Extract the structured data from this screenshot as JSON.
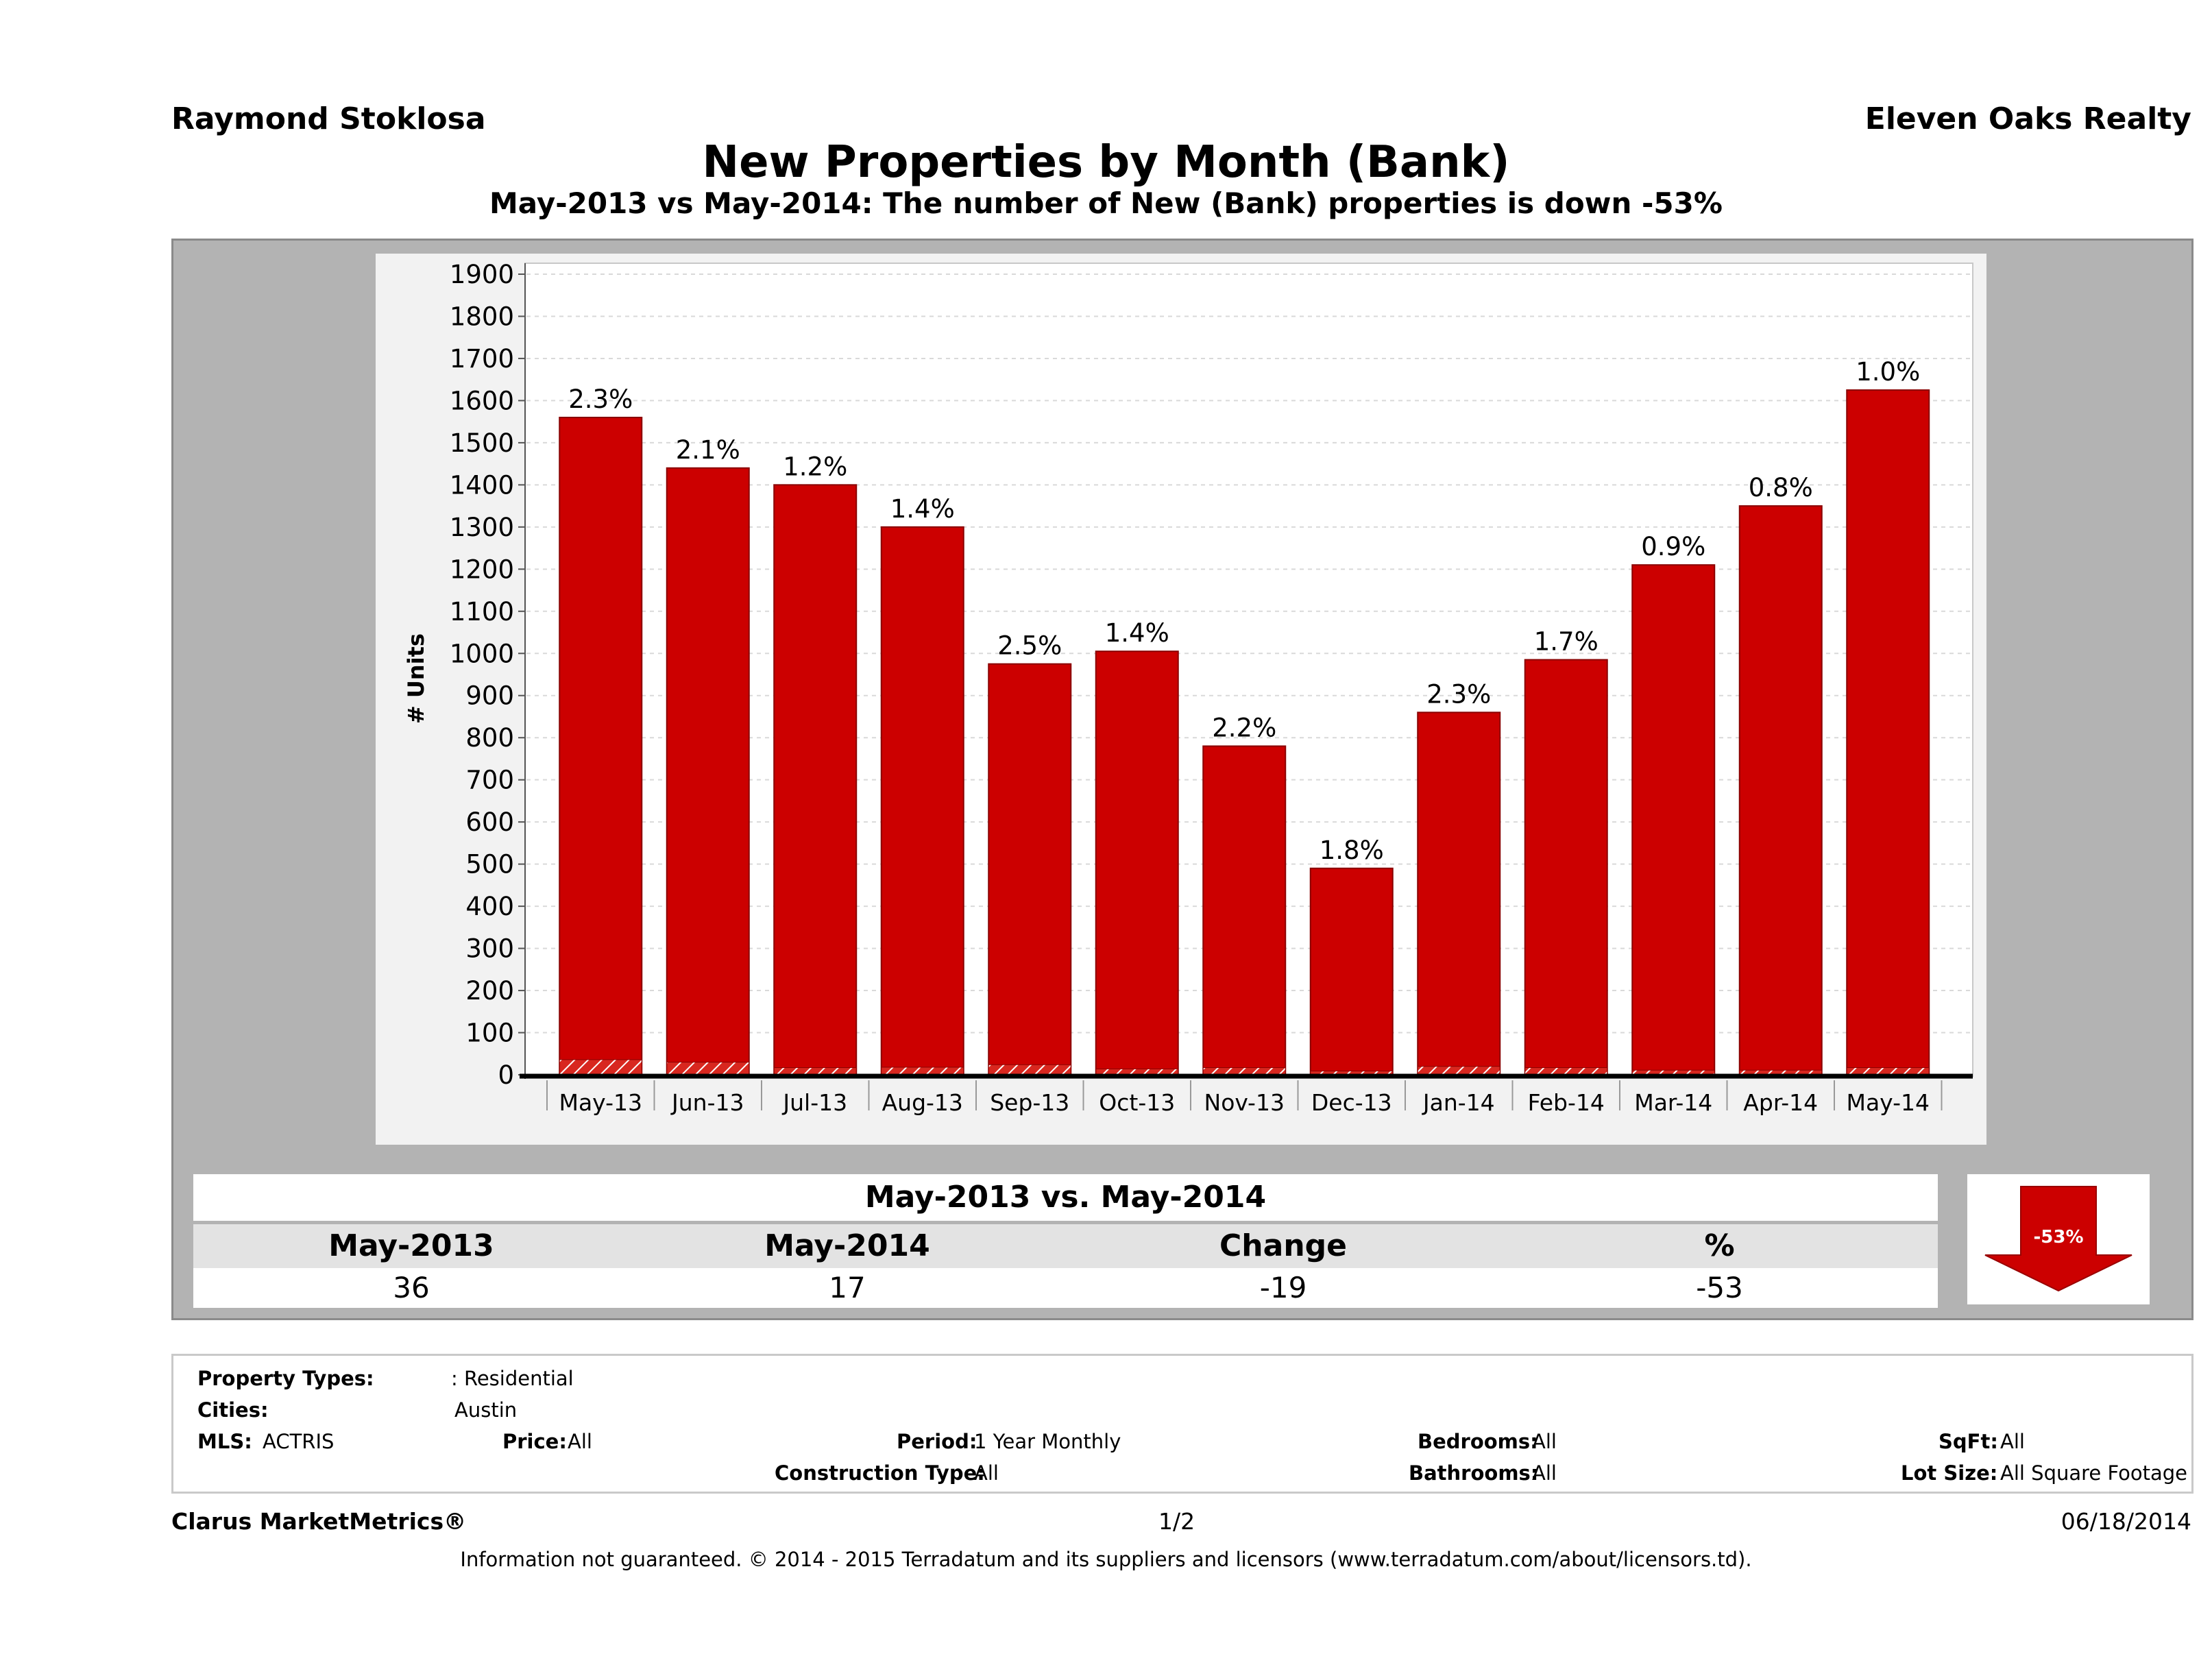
{
  "header": {
    "agent_name": "Raymond Stoklosa",
    "company": "Eleven Oaks Realty",
    "title": "New Properties by Month (Bank)",
    "subtitle": "May-2013 vs May-2014: The number of New (Bank)  properties is down -53%"
  },
  "colors": {
    "bar": "#cc0000",
    "bar_stroke": "#8a0000",
    "panel": "#b3b3b3",
    "plot_bg": "#ffffff"
  },
  "chart_data": {
    "type": "bar",
    "ylabel": "# Units",
    "xlabel": "",
    "ylim": [
      0,
      1900
    ],
    "yticks": [
      0,
      100,
      200,
      300,
      400,
      500,
      600,
      700,
      800,
      900,
      1000,
      1100,
      1200,
      1300,
      1400,
      1500,
      1600,
      1700,
      1800,
      1900
    ],
    "grid": true,
    "categories": [
      "May-13",
      "Jun-13",
      "Jul-13",
      "Aug-13",
      "Sep-13",
      "Oct-13",
      "Nov-13",
      "Dec-13",
      "Jan-14",
      "Feb-14",
      "Mar-14",
      "Apr-14",
      "May-14"
    ],
    "series": [
      {
        "values": [
          1560,
          1440,
          1400,
          1300,
          975,
          1005,
          780,
          490,
          860,
          985,
          1210,
          1350,
          1625
        ]
      },
      {
        "values": [
          36,
          30,
          17,
          18,
          24,
          14,
          17,
          9,
          20,
          17,
          11,
          11,
          17
        ]
      }
    ],
    "data_labels": [
      "2.3%",
      "2.1%",
      "1.2%",
      "1.4%",
      "2.5%",
      "1.4%",
      "2.2%",
      "1.8%",
      "2.3%",
      "1.7%",
      "0.9%",
      "0.8%",
      "1.0%"
    ]
  },
  "comparison": {
    "title": "May-2013 vs. May-2014",
    "headers": [
      "May-2013",
      "May-2014",
      "Change",
      "%"
    ],
    "values": [
      "36",
      "17",
      "-19",
      "-53"
    ],
    "badge": "-53%",
    "direction": "down",
    "badge_icon": "down-arrow-icon"
  },
  "criteria": {
    "property_types_label": "Property Types:",
    "property_types_value": ": Residential",
    "cities_label": "Cities:",
    "cities_value": "Austin",
    "mls_label": "MLS:",
    "mls_value": "ACTRIS",
    "price_label": "Price:",
    "price_value": "All",
    "period_label": "Period:",
    "period_value": "1 Year Monthly",
    "construction_label": "Construction Type:",
    "construction_value": "All",
    "bedrooms_label": "Bedrooms:",
    "bedrooms_value": "All",
    "bathrooms_label": "Bathrooms:",
    "bathrooms_value": "All",
    "sqft_label": "SqFt:",
    "sqft_value": "All",
    "lotsize_label": "Lot Size:",
    "lotsize_value": "All Square Footage"
  },
  "footer": {
    "brand": "Clarus MarketMetrics®",
    "page": "1/2",
    "date": "06/18/2014",
    "disclaimer": "Information not guaranteed. © 2014 - 2015 Terradatum and its suppliers and licensors (www.terradatum.com/about/licensors.td)."
  }
}
